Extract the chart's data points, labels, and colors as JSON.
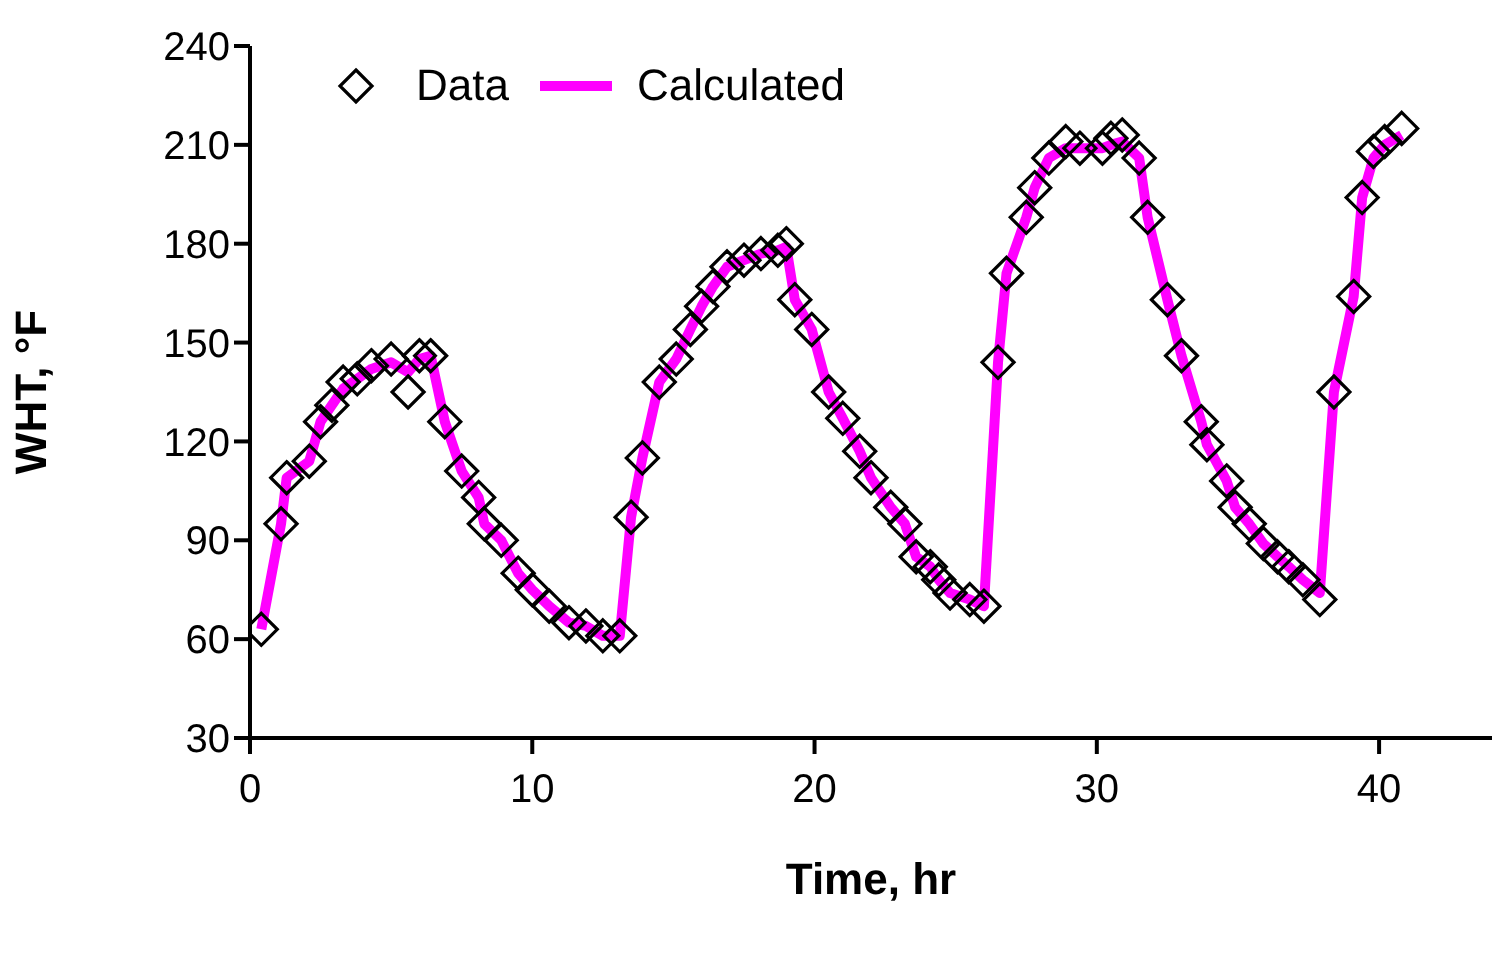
{
  "chart_data": {
    "type": "scatter",
    "xlabel": "Time, hr",
    "ylabel": "WHT, °F",
    "xlim": [
      0,
      44
    ],
    "xticks": [
      0,
      10,
      20,
      30,
      40
    ],
    "ylim": [
      30,
      240
    ],
    "yticks": [
      30,
      60,
      90,
      120,
      150,
      180,
      210,
      240
    ],
    "grid": false,
    "legend": "top left",
    "series": [
      {
        "name": "Data",
        "marker": "diamond",
        "color": "#000000",
        "x": [
          0.4,
          1.1,
          1.3,
          2.1,
          2.5,
          2.9,
          3.3,
          3.8,
          4.3,
          5.0,
          5.6,
          6.0,
          6.4,
          6.9,
          7.5,
          8.1,
          8.3,
          8.9,
          9.5,
          10.0,
          10.6,
          11.3,
          11.9,
          12.5,
          13.1,
          13.5,
          13.9,
          14.5,
          15.1,
          15.6,
          16.0,
          16.4,
          16.9,
          17.5,
          18.1,
          18.7,
          19.0,
          19.3,
          19.9,
          20.5,
          21.0,
          21.6,
          22.0,
          22.7,
          23.2,
          23.6,
          24.1,
          24.4,
          24.8,
          25.5,
          26.0,
          26.5,
          26.8,
          27.5,
          27.8,
          28.3,
          28.9,
          29.4,
          30.2,
          30.5,
          30.9,
          31.5,
          31.8,
          32.5,
          33.0,
          33.7,
          33.9,
          34.6,
          34.9,
          35.4,
          35.9,
          36.4,
          36.8,
          37.3,
          37.9,
          38.4,
          39.1,
          39.4,
          39.8,
          40.2,
          40.8
        ],
        "values": [
          63,
          95,
          109,
          114,
          126,
          131,
          138,
          139,
          143,
          145,
          135,
          146,
          146,
          126,
          111,
          103,
          95,
          90,
          80,
          75,
          70,
          65,
          64,
          61,
          61,
          97,
          115,
          138,
          145,
          154,
          161,
          167,
          173,
          175,
          177,
          178,
          180,
          163,
          154,
          135,
          127,
          117,
          109,
          100,
          95,
          85,
          82,
          78,
          74,
          72,
          70,
          144,
          171,
          188,
          197,
          206,
          211,
          209,
          209,
          212,
          213,
          206,
          188,
          163,
          146,
          126,
          119,
          108,
          100,
          95,
          89,
          85,
          82,
          78,
          72,
          135,
          164,
          194,
          208,
          211,
          215
        ]
      },
      {
        "name": "Calculated",
        "type": "line",
        "marker": "none",
        "line_style": "solid",
        "color": "#ff00ff",
        "x": [
          0.4,
          1.1,
          1.3,
          2.1,
          2.5,
          2.9,
          3.3,
          3.8,
          4.3,
          5.0,
          5.6,
          6.0,
          6.4,
          6.9,
          7.5,
          8.1,
          8.3,
          8.9,
          9.5,
          10.0,
          10.6,
          11.3,
          11.9,
          12.5,
          13.1,
          13.5,
          13.9,
          14.5,
          15.1,
          15.6,
          16.0,
          16.4,
          16.9,
          17.5,
          18.1,
          18.7,
          19.0,
          19.3,
          19.9,
          20.5,
          21.0,
          21.6,
          22.0,
          22.7,
          23.2,
          23.6,
          24.1,
          24.4,
          24.8,
          25.5,
          26.0,
          26.5,
          26.8,
          27.5,
          27.8,
          28.3,
          28.9,
          29.4,
          30.2,
          30.5,
          30.9,
          31.5,
          31.8,
          32.5,
          33.0,
          33.7,
          33.9,
          34.6,
          34.9,
          35.4,
          35.9,
          36.4,
          36.8,
          37.3,
          37.9,
          38.4,
          39.1,
          39.4,
          39.8,
          40.2,
          40.8
        ],
        "values": [
          63,
          95,
          109,
          114,
          126,
          131,
          136,
          139,
          142,
          144,
          141,
          145,
          146,
          126,
          111,
          103,
          95,
          90,
          80,
          75,
          70,
          65,
          64,
          61,
          61,
          97,
          115,
          138,
          145,
          154,
          161,
          167,
          173,
          175,
          177,
          178,
          179,
          163,
          154,
          135,
          127,
          117,
          109,
          100,
          95,
          85,
          82,
          78,
          74,
          72,
          70,
          144,
          171,
          188,
          197,
          206,
          209,
          209,
          209,
          210,
          211,
          206,
          188,
          163,
          146,
          126,
          119,
          108,
          100,
          95,
          89,
          85,
          82,
          78,
          74,
          135,
          164,
          194,
          206,
          210,
          213
        ]
      }
    ]
  }
}
